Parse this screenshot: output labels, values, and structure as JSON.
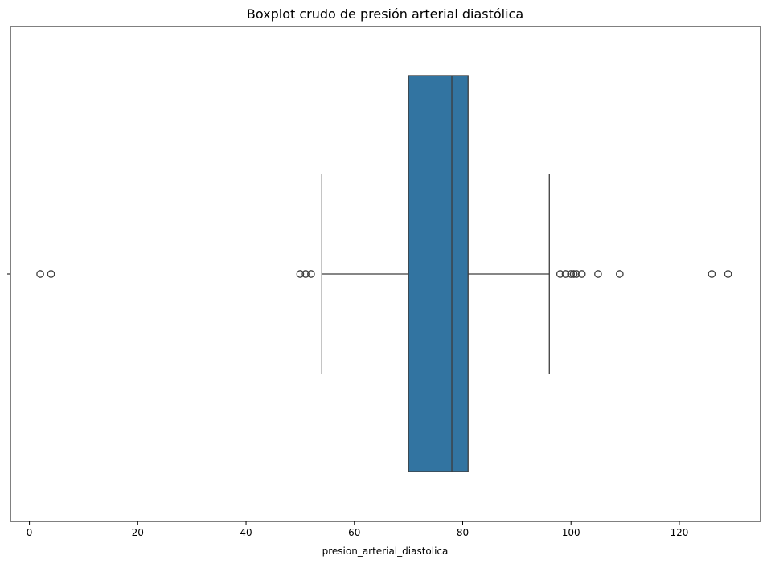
{
  "chart_data": {
    "type": "boxplot",
    "orientation": "horizontal",
    "title": "Boxplot crudo de presión arterial diastólica",
    "xlabel": "presion_arterial_diastolica",
    "ylabel": "",
    "xlim": [
      -3.5,
      135
    ],
    "x_ticks": [
      0,
      20,
      40,
      60,
      80,
      100,
      120
    ],
    "x_tick_labels": [
      "0",
      "20",
      "40",
      "60",
      "80",
      "100",
      "120"
    ],
    "grid": false,
    "colors": {
      "box": "#3274a1",
      "line": "#3d3d3d",
      "outlier": "#3d3d3d"
    },
    "box": {
      "whisker_low": 54,
      "q1": 70,
      "median": 78,
      "q3": 81,
      "whisker_high": 96
    },
    "outliers": [
      2,
      4,
      50,
      51,
      52,
      98,
      99,
      100,
      100.5,
      101,
      102,
      105,
      109,
      126,
      129
    ]
  }
}
